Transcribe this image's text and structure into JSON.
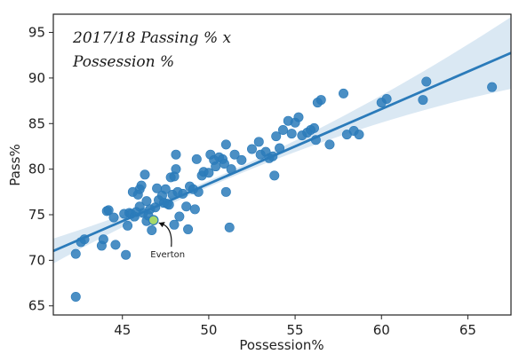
{
  "chart_data": {
    "type": "scatter",
    "title_lines": [
      "2017/18 Passing % x",
      "Possession %"
    ],
    "xlabel": "Possession%",
    "ylabel": "Pass%",
    "xlim": [
      41,
      67.5
    ],
    "ylim": [
      64,
      97
    ],
    "xticks": [
      45,
      50,
      55,
      60,
      65
    ],
    "yticks": [
      65,
      70,
      75,
      80,
      85,
      90,
      95
    ],
    "grid": false,
    "point_color": "#2b7bba",
    "line_color": "#2b7bba",
    "band_color": "#bcd6ea",
    "highlight_color": "#a6d96a",
    "regression": {
      "slope": 0.82,
      "intercept": 37.4
    },
    "highlight": {
      "label": "Everton",
      "x": 46.8,
      "y": 74.4
    },
    "points": [
      [
        42.3,
        66
      ],
      [
        42.3,
        70.7
      ],
      [
        42.6,
        72
      ],
      [
        42.8,
        72.3
      ],
      [
        43.8,
        71.6
      ],
      [
        43.9,
        72.3
      ],
      [
        44.1,
        75.4
      ],
      [
        44.2,
        75.5
      ],
      [
        44.5,
        74.7
      ],
      [
        44.6,
        71.7
      ],
      [
        45.1,
        75.1
      ],
      [
        45.2,
        70.6
      ],
      [
        45.3,
        73.8
      ],
      [
        45.4,
        75.2
      ],
      [
        45.5,
        75.1
      ],
      [
        45.6,
        77.5
      ],
      [
        45.7,
        74.8
      ],
      [
        45.8,
        75.3
      ],
      [
        45.9,
        77.2
      ],
      [
        46.0,
        77.8
      ],
      [
        46.0,
        75.9
      ],
      [
        46.1,
        78.2
      ],
      [
        46.2,
        75.2
      ],
      [
        46.3,
        79.4
      ],
      [
        46.4,
        74.3
      ],
      [
        46.4,
        76.5
      ],
      [
        46.5,
        74.9
      ],
      [
        46.6,
        75.6
      ],
      [
        46.7,
        73.3
      ],
      [
        46.9,
        75.8
      ],
      [
        47.0,
        77.9
      ],
      [
        47.1,
        76.6
      ],
      [
        47.3,
        77.1
      ],
      [
        47.4,
        76.3
      ],
      [
        47.5,
        77.8
      ],
      [
        47.6,
        76.2
      ],
      [
        47.7,
        76.1
      ],
      [
        47.8,
        79.1
      ],
      [
        47.9,
        77.2
      ],
      [
        48.0,
        73.9
      ],
      [
        48.0,
        79.2
      ],
      [
        48.1,
        80.0
      ],
      [
        48.1,
        81.6
      ],
      [
        48.2,
        77.5
      ],
      [
        48.3,
        74.8
      ],
      [
        48.5,
        77.3
      ],
      [
        48.7,
        75.9
      ],
      [
        48.8,
        73.4
      ],
      [
        48.9,
        78.1
      ],
      [
        49.1,
        77.8
      ],
      [
        49.2,
        75.6
      ],
      [
        49.3,
        81.1
      ],
      [
        49.4,
        77.5
      ],
      [
        49.6,
        79.3
      ],
      [
        49.7,
        79.7
      ],
      [
        50.0,
        79.6
      ],
      [
        50.1,
        81.6
      ],
      [
        50.3,
        81.0
      ],
      [
        50.4,
        80.3
      ],
      [
        50.6,
        81.3
      ],
      [
        50.8,
        81.1
      ],
      [
        50.9,
        80.6
      ],
      [
        51.0,
        82.7
      ],
      [
        51.0,
        77.5
      ],
      [
        51.2,
        73.6
      ],
      [
        51.3,
        80.0
      ],
      [
        51.5,
        81.6
      ],
      [
        51.9,
        81.0
      ],
      [
        52.5,
        82.2
      ],
      [
        52.9,
        83.0
      ],
      [
        53.0,
        81.6
      ],
      [
        53.3,
        81.9
      ],
      [
        53.5,
        81.2
      ],
      [
        53.7,
        81.4
      ],
      [
        53.8,
        79.3
      ],
      [
        53.9,
        83.6
      ],
      [
        54.1,
        82.3
      ],
      [
        54.3,
        84.3
      ],
      [
        54.6,
        85.3
      ],
      [
        54.8,
        83.9
      ],
      [
        55.0,
        85.1
      ],
      [
        55.2,
        85.7
      ],
      [
        55.4,
        83.7
      ],
      [
        55.7,
        84.0
      ],
      [
        55.9,
        84.3
      ],
      [
        56.1,
        84.5
      ],
      [
        56.2,
        83.2
      ],
      [
        56.3,
        87.3
      ],
      [
        56.5,
        87.6
      ],
      [
        57.0,
        82.7
      ],
      [
        57.8,
        88.3
      ],
      [
        58.0,
        83.8
      ],
      [
        58.4,
        84.2
      ],
      [
        58.7,
        83.8
      ],
      [
        60.0,
        87.3
      ],
      [
        60.3,
        87.7
      ],
      [
        62.4,
        87.6
      ],
      [
        62.6,
        89.6
      ],
      [
        66.4,
        89.0
      ]
    ]
  }
}
